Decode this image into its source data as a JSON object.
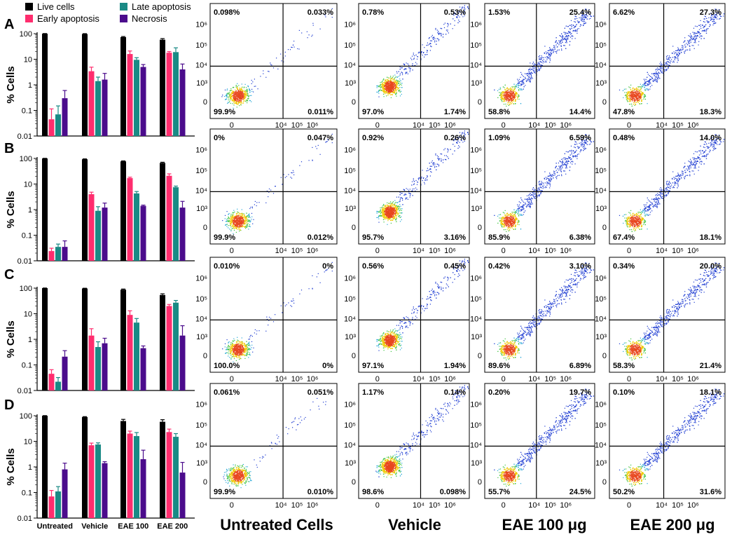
{
  "legend": [
    {
      "label": "Live cells",
      "color": "#000000"
    },
    {
      "label": "Late apoptosis",
      "color": "#1a8a85"
    },
    {
      "label": "Early apoptosis",
      "color": "#ff2d6e"
    },
    {
      "label": "Necrosis",
      "color": "#4b0c8c"
    }
  ],
  "panel_labels": [
    "A",
    "B",
    "C",
    "D"
  ],
  "column_titles": [
    "Untreated Cells",
    "Vehicle",
    "EAE 100 μg",
    "EAE 200 μg"
  ],
  "chart_data": [
    {
      "type": "bar",
      "panel": "A",
      "ylabel": "% Cells",
      "yscale": "log",
      "ylim": [
        0.01,
        100
      ],
      "ytick_labels": [
        "0.01",
        "0.1",
        "1",
        "10",
        "100"
      ],
      "categories": [
        "Untreated",
        "Vehicle",
        "EAE 100",
        "EAE 200"
      ],
      "series": [
        {
          "name": "Live cells",
          "values": [
            99.9,
            97.0,
            73.2,
            58.0
          ],
          "err": [
            1,
            3,
            4,
            6
          ]
        },
        {
          "name": "Early apoptosis",
          "values": [
            0.045,
            3.4,
            16,
            18
          ],
          "err": [
            0.07,
            1.5,
            5,
            2
          ]
        },
        {
          "name": "Late apoptosis",
          "values": [
            0.07,
            1.4,
            9.5,
            19
          ],
          "err": [
            0.08,
            0.6,
            2,
            9
          ]
        },
        {
          "name": "Necrosis",
          "values": [
            0.3,
            1.6,
            5.0,
            4.0
          ],
          "err": [
            0.3,
            1.2,
            1.2,
            2.5
          ]
        }
      ]
    },
    {
      "type": "bar",
      "panel": "B",
      "ylabel": "% Cells",
      "yscale": "log",
      "ylim": [
        0.01,
        100
      ],
      "ytick_labels": [
        "0.01",
        "0.1",
        "1",
        "10",
        "100"
      ],
      "categories": [
        "Untreated",
        "Vehicle",
        "EAE 100",
        "EAE 200"
      ],
      "series": [
        {
          "name": "Live cells",
          "values": [
            99.9,
            93.0,
            77.0,
            67.0
          ],
          "err": [
            1,
            3,
            3,
            4
          ]
        },
        {
          "name": "Early apoptosis",
          "values": [
            0.024,
            4.0,
            17,
            21
          ],
          "err": [
            0.007,
            0.8,
            1.5,
            4
          ]
        },
        {
          "name": "Late apoptosis",
          "values": [
            0.035,
            0.9,
            4.3,
            7.5
          ],
          "err": [
            0.01,
            0.4,
            0.8,
            0.8
          ]
        },
        {
          "name": "Necrosis",
          "values": [
            0.035,
            1.2,
            1.4,
            1.2
          ],
          "err": [
            0.025,
            0.6,
            0.1,
            0.9
          ]
        }
      ]
    },
    {
      "type": "bar",
      "panel": "C",
      "ylabel": "% Cells",
      "yscale": "log",
      "ylim": [
        0.01,
        100
      ],
      "ytick_labels": [
        "0.01",
        "0.1",
        "1",
        "10",
        "100"
      ],
      "categories": [
        "Untreated",
        "Vehicle",
        "EAE 100",
        "EAE 200"
      ],
      "series": [
        {
          "name": "Live cells",
          "values": [
            100.0,
            97.0,
            87.0,
            54.0
          ],
          "err": [
            1,
            2,
            5,
            6
          ]
        },
        {
          "name": "Early apoptosis",
          "values": [
            0.045,
            1.4,
            9.0,
            20
          ],
          "err": [
            0.02,
            1.2,
            4,
            3
          ]
        },
        {
          "name": "Late apoptosis",
          "values": [
            0.022,
            0.5,
            4.5,
            27
          ],
          "err": [
            0.01,
            0.3,
            2,
            6
          ]
        },
        {
          "name": "Necrosis",
          "values": [
            0.21,
            0.7,
            0.45,
            1.4
          ],
          "err": [
            0.15,
            0.4,
            0.1,
            2
          ]
        }
      ]
    },
    {
      "type": "bar",
      "panel": "D",
      "ylabel": "% Cells",
      "yscale": "log",
      "ylim": [
        0.01,
        100
      ],
      "ytick_labels": [
        "0.01",
        "0.1",
        "1",
        "10",
        "100"
      ],
      "categories": [
        "Untreated",
        "Vehicle",
        "EAE 100",
        "EAE 200"
      ],
      "series": [
        {
          "name": "Live cells",
          "values": [
            99.9,
            89.0,
            62.0,
            58.0
          ],
          "err": [
            1,
            3,
            10,
            12
          ]
        },
        {
          "name": "Early apoptosis",
          "values": [
            0.07,
            7.0,
            20,
            23
          ],
          "err": [
            0.05,
            1.5,
            5,
            7
          ]
        },
        {
          "name": "Late apoptosis",
          "values": [
            0.11,
            7.5,
            16,
            15
          ],
          "err": [
            0.06,
            1.2,
            6,
            5
          ]
        },
        {
          "name": "Necrosis",
          "values": [
            0.8,
            1.4,
            2.0,
            0.6
          ],
          "err": [
            0.6,
            0.2,
            2.5,
            0.9
          ]
        }
      ]
    },
    {
      "type": "scatter",
      "description": "flow cytometry quadrant plots (Annexin V / PI)",
      "ytick_labels": [
        "0",
        "10³",
        "10⁴",
        "10⁵",
        "10⁶"
      ],
      "xtick_labels": [
        "0",
        "10⁴",
        "10⁵",
        "10⁶"
      ],
      "columns": [
        "Untreated Cells",
        "Vehicle",
        "EAE 100 μg",
        "EAE 200 μg"
      ],
      "rows": [
        [
          {
            "ul": "0.098%",
            "ur": "0.033%",
            "ll": "99.9%",
            "lr": "0.011%"
          },
          {
            "ul": "0.78%",
            "ur": "0.53%",
            "ll": "97.0%",
            "lr": "1.74%"
          },
          {
            "ul": "1.53%",
            "ur": "25.4%",
            "ll": "58.8%",
            "lr": "14.4%"
          },
          {
            "ul": "6.62%",
            "ur": "27.3%",
            "ll": "47.8%",
            "lr": "18.3%"
          }
        ],
        [
          {
            "ul": "0%",
            "ur": "0.047%",
            "ll": "99.9%",
            "lr": "0.012%"
          },
          {
            "ul": "0.92%",
            "ur": "0.26%",
            "ll": "95.7%",
            "lr": "3.16%"
          },
          {
            "ul": "1.09%",
            "ur": "6.59%",
            "ll": "85.9%",
            "lr": "6.38%"
          },
          {
            "ul": "0.48%",
            "ur": "14.0%",
            "ll": "67.4%",
            "lr": "18.1%"
          }
        ],
        [
          {
            "ul": "0.010%",
            "ur": "0%",
            "ll": "100.0%",
            "lr": "0%"
          },
          {
            "ul": "0.56%",
            "ur": "0.45%",
            "ll": "97.1%",
            "lr": "1.94%"
          },
          {
            "ul": "0.42%",
            "ur": "3.10%",
            "ll": "89.6%",
            "lr": "6.89%"
          },
          {
            "ul": "0.34%",
            "ur": "20.0%",
            "ll": "58.3%",
            "lr": "21.4%"
          }
        ],
        [
          {
            "ul": "0.061%",
            "ur": "0.051%",
            "ll": "99.9%",
            "lr": "0.010%"
          },
          {
            "ul": "1.17%",
            "ur": "0.14%",
            "ll": "98.6%",
            "lr": "0.098%"
          },
          {
            "ul": "0.20%",
            "ur": "19.7%",
            "ll": "55.7%",
            "lr": "24.5%"
          },
          {
            "ul": "0.10%",
            "ur": "18.1%",
            "ll": "50.2%",
            "lr": "31.6%"
          }
        ]
      ]
    }
  ]
}
